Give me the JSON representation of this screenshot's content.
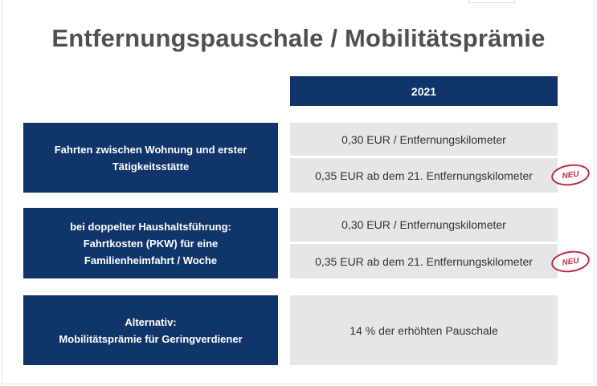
{
  "title": "Entfernungspauschale / Mobilitätsprämie",
  "header": {
    "year": "2021"
  },
  "rows": [
    {
      "label_lines": [
        "Fahrten zwischen Wohnung und erster",
        "Tätigkeitsstätte"
      ],
      "values": [
        "0,30 EUR / Entfernungskilometer",
        "0,35 EUR ab dem 21. Entfernungskilometer"
      ],
      "badge": "NEU"
    },
    {
      "label_lines": [
        "bei doppelter Haushaltsführung:",
        "Fahrtkosten (PKW) für eine",
        "Familienheimfahrt / Woche"
      ],
      "values": [
        "0,30 EUR / Entfernungskilometer",
        "0,35 EUR ab dem 21. Entfernungskilometer"
      ],
      "badge": "NEU"
    },
    {
      "label_lines": [
        "Alternativ:",
        "Mobilitätsprämie für Geringverdiener"
      ],
      "values": [
        "14 % der erhöhten Pauschale"
      ]
    }
  ],
  "colors": {
    "navy": "#0f356b",
    "cell_gray": "#e6e6e6",
    "badge_red": "#c0283c",
    "title_gray": "#505050"
  }
}
